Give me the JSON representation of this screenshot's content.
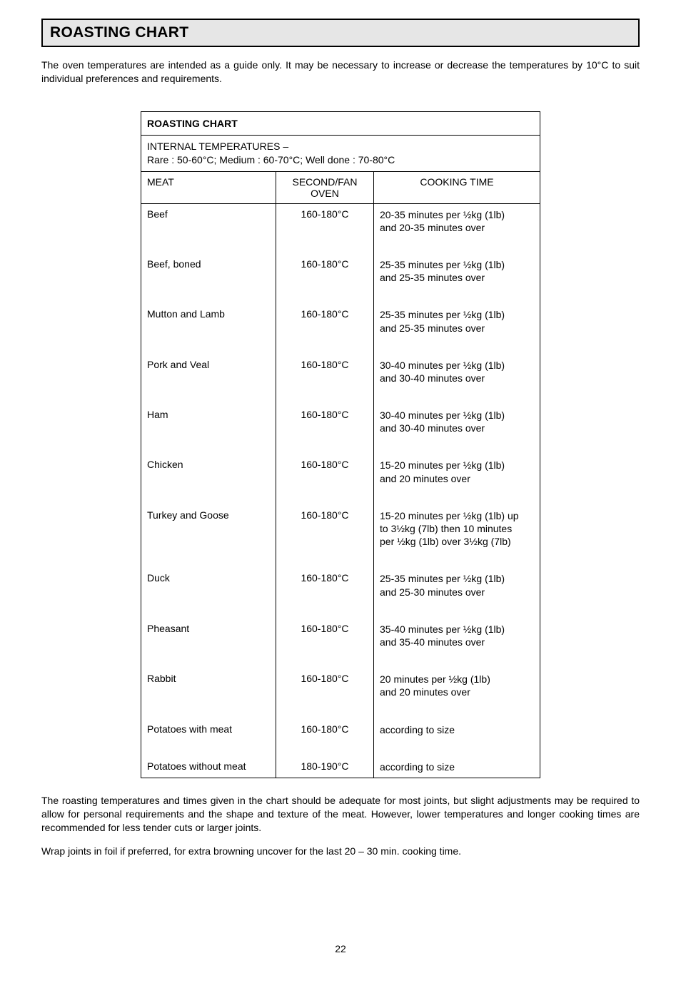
{
  "page": {
    "title": "ROASTING CHART",
    "intro": "The oven temperatures are intended as a guide only. It may be necessary to increase or decrease the temperatures by 10°C to suit individual preferences and requirements.",
    "outro1": "The roasting temperatures and times given in the chart should be adequate for most joints, but slight adjustments may be required to allow for personal requirements and the shape and texture of the meat.  However, lower temperatures and longer cooking times are recommended for less tender cuts or larger joints.",
    "outro2": "Wrap joints in foil if preferred, for extra browning uncover for the last 20 – 30 min. cooking time.",
    "page_number": "22"
  },
  "table": {
    "heading": "ROASTING CHART",
    "subheading_line1": "INTERNAL TEMPERATURES –",
    "subheading_line2": "Rare : 50-60°C; Medium : 60-70°C; Well done : 70-80°C",
    "columns": {
      "meat": "MEAT",
      "temp_line1": "SECOND/FAN",
      "temp_line2": "OVEN",
      "cook": "COOKING TIME"
    },
    "rows": [
      {
        "meat": "Beef",
        "temp": "160-180°C",
        "cook_l1": "20-35 minutes per ½kg (1lb)",
        "cook_l2": "and 20-35 minutes over",
        "cook_l3": ""
      },
      {
        "meat": "Beef, boned",
        "temp": "160-180°C",
        "cook_l1": "25-35 minutes per ½kg (1lb)",
        "cook_l2": "and 25-35 minutes over",
        "cook_l3": ""
      },
      {
        "meat": "Mutton and Lamb",
        "temp": "160-180°C",
        "cook_l1": "25-35 minutes per ½kg (1lb)",
        "cook_l2": "and 25-35 minutes over",
        "cook_l3": ""
      },
      {
        "meat": "Pork and Veal",
        "temp": "160-180°C",
        "cook_l1": "30-40 minutes per ½kg (1lb)",
        "cook_l2": "and 30-40 minutes over",
        "cook_l3": ""
      },
      {
        "meat": "Ham",
        "temp": "160-180°C",
        "cook_l1": "30-40 minutes per ½kg (1lb)",
        "cook_l2": "and 30-40 minutes over",
        "cook_l3": ""
      },
      {
        "meat": "Chicken",
        "temp": "160-180°C",
        "cook_l1": "15-20 minutes per ½kg (1lb)",
        "cook_l2": "and 20 minutes over",
        "cook_l3": ""
      },
      {
        "meat": "Turkey and Goose",
        "temp": "160-180°C",
        "cook_l1": "15-20 minutes per ½kg (1lb) up",
        "cook_l2": "to 3½kg (7lb) then 10 minutes",
        "cook_l3": "per ½kg (1lb) over  3½kg (7lb)"
      },
      {
        "meat": "Duck",
        "temp": "160-180°C",
        "cook_l1": "25-35 minutes per ½kg (1lb)",
        "cook_l2": "and 25-30 minutes over",
        "cook_l3": ""
      },
      {
        "meat": "Pheasant",
        "temp": "160-180°C",
        "cook_l1": "35-40 minutes per ½kg (1lb)",
        "cook_l2": "and 35-40 minutes over",
        "cook_l3": ""
      },
      {
        "meat": "Rabbit",
        "temp": "160-180°C",
        "cook_l1": "20 minutes per ½kg (1lb)",
        "cook_l2": "and 20 minutes over",
        "cook_l3": ""
      },
      {
        "meat": "Potatoes with meat",
        "temp": "160-180°C",
        "cook_l1": "according to size",
        "cook_l2": "",
        "cook_l3": ""
      },
      {
        "meat": "Potatoes without meat",
        "temp": "180-190°C",
        "cook_l1": "according to size",
        "cook_l2": "",
        "cook_l3": ""
      }
    ]
  }
}
